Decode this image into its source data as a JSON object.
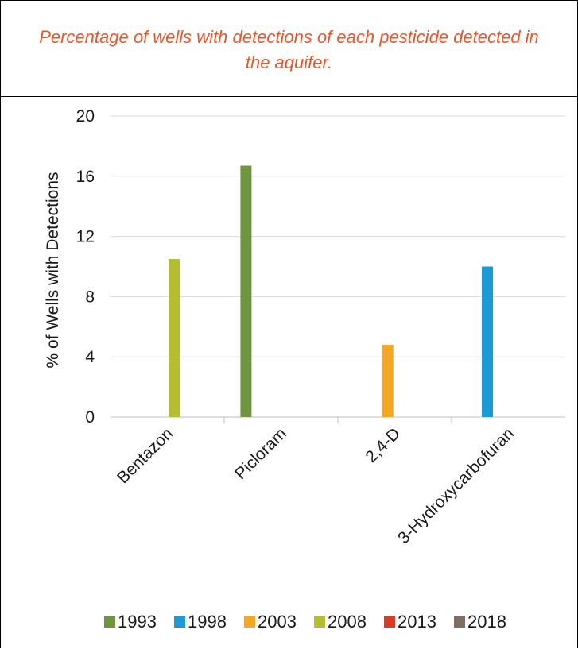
{
  "chart_data": {
    "type": "bar",
    "title": "Percentage of wells with detections of each pesticide detected in the aquifer.",
    "ylabel": "% of Wells with Detections",
    "xlabel": "",
    "ylim": [
      0,
      20
    ],
    "yticks": [
      0,
      4,
      8,
      12,
      16,
      20
    ],
    "grid": true,
    "legend_position": "bottom",
    "categories": [
      "Bentazon",
      "Picloram",
      "2,4-D",
      "3-Hydroxycarbofuran"
    ],
    "series": [
      {
        "name": "1993",
        "color": "#70953f",
        "values": [
          null,
          16.7,
          null,
          null
        ]
      },
      {
        "name": "1998",
        "color": "#1b9ad6",
        "values": [
          null,
          null,
          null,
          10.0
        ]
      },
      {
        "name": "2003",
        "color": "#f5a623",
        "values": [
          null,
          null,
          4.8,
          null
        ]
      },
      {
        "name": "2008",
        "color": "#b3bf31",
        "values": [
          10.5,
          null,
          null,
          null
        ]
      },
      {
        "name": "2013",
        "color": "#d63d27",
        "values": [
          null,
          null,
          null,
          null
        ]
      },
      {
        "name": "2018",
        "color": "#7d7068",
        "values": [
          null,
          null,
          null,
          null
        ]
      }
    ]
  }
}
